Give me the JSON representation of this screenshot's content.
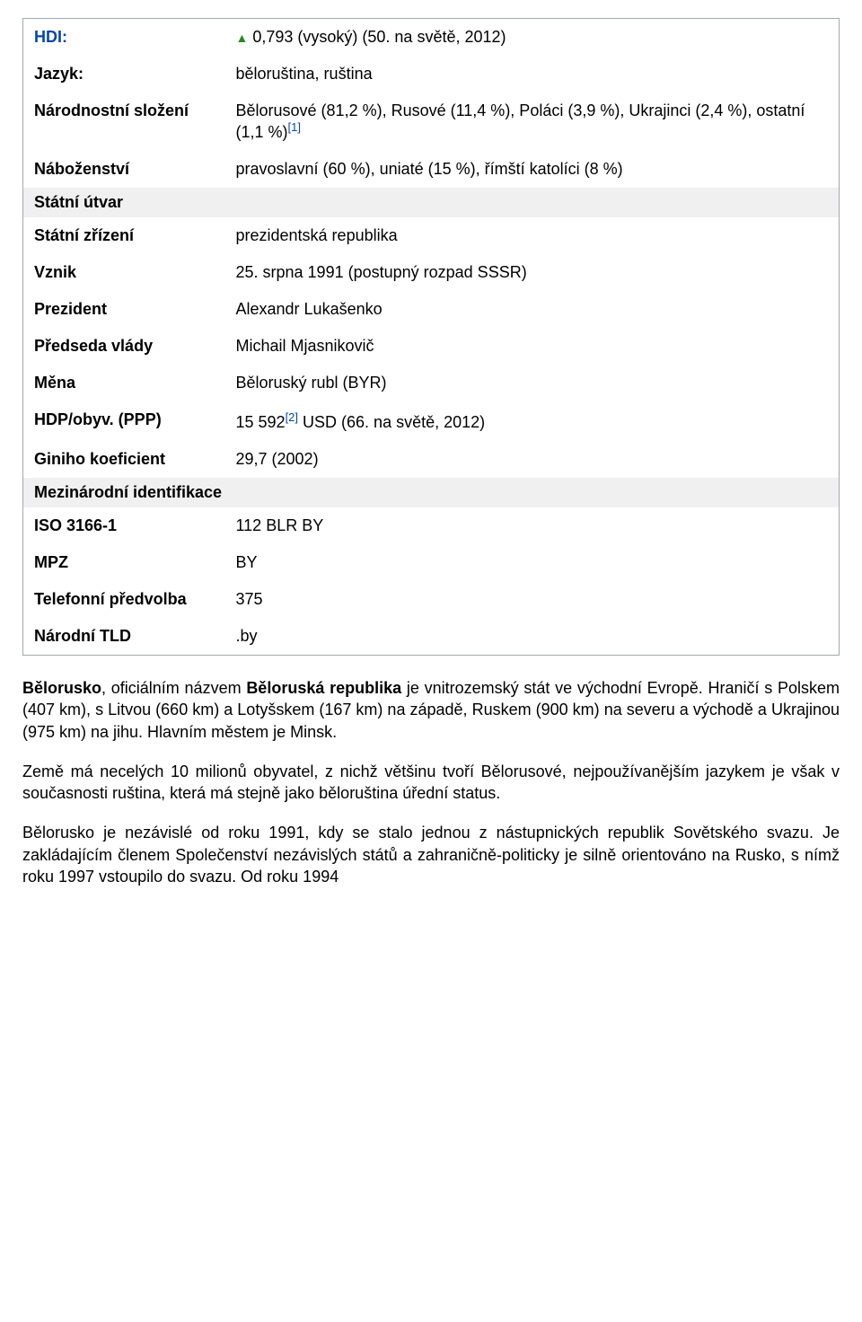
{
  "rows": {
    "hdi": {
      "label": "HDI:",
      "triangle": "▲",
      "value": " 0,793 (vysoký) (50. na světě, 2012)"
    },
    "language": {
      "label": "Jazyk:",
      "value": "běloruština, ruština"
    },
    "ethnic": {
      "label": "Národnostní složení",
      "text_before": "Bělorusové (81,2 %), Rusové (11,4 %), Poláci (3,9 %), Ukrajinci (2,4 %), ostatní (1,1 %)",
      "sup": "[1]"
    },
    "religion": {
      "label": "Náboženství",
      "value": "pravoslavní (60 %), uniaté (15 %), římští katolíci (8 %)"
    },
    "state_entity": {
      "label": "Státní útvar"
    },
    "gov_form": {
      "label": "Státní zřízení",
      "value": "prezidentská republika"
    },
    "founded": {
      "label": "Vznik",
      "value": "25. srpna 1991 (postupný rozpad SSSR)"
    },
    "president": {
      "label": "Prezident",
      "value": "Alexandr Lukašenko"
    },
    "pm": {
      "label": "Předseda vlády",
      "value": "Michail Mjasnikovič"
    },
    "currency": {
      "label": "Měna",
      "value": "Běloruský rubl (BYR)"
    },
    "gdp": {
      "label": "HDP/obyv. (PPP)",
      "text_before": "15 592",
      "sup": "[2]",
      "text_after": " USD (66. na světě, 2012)"
    },
    "gini": {
      "label": "Giniho koeficient",
      "value": "29,7 (2002)"
    },
    "intl_id": {
      "label": "Mezinárodní identifikace"
    },
    "iso": {
      "label": "ISO 3166-1",
      "value": "112 BLR BY"
    },
    "mpz": {
      "label": "MPZ",
      "value": "BY"
    },
    "phone": {
      "label": "Telefonní předvolba",
      "value": "375"
    },
    "tld": {
      "label": "Národní TLD",
      "value": ".by"
    }
  },
  "paragraphs": {
    "p1": {
      "b1": "Bělorusko",
      "t1": ", oficiálním názvem ",
      "b2": "Běloruská republika",
      "t2": " je vnitrozemský stát ve východní Evropě. Hraničí s Polskem (407 km), s Litvou (660 km) a Lotyšskem (167 km) na západě, Ruskem (900 km) na severu a východě a Ukrajinou (975 km) na jihu. Hlavním městem je Minsk."
    },
    "p2": "Země má necelých 10 milionů obyvatel, z nichž většinu tvoří Bělorusové, nejpoužívanějším jazykem je však v současnosti ruština, která má stejně jako běloruština úřední status.",
    "p3": "Bělorusko je nezávislé od roku 1991, kdy se stalo jednou z nástupnických republik Sovětského svazu. Je zakládajícím členem Společenství nezávislých států a zahraničně-politicky je silně orientováno na Rusko, s nímž roku 1997 vstoupilo do svazu. Od roku 1994"
  },
  "colors": {
    "border": "#a2a9b1",
    "section_bg": "#f0f0f0",
    "link": "#0645ad",
    "triangle": "#228b22",
    "text": "#000000",
    "background": "#ffffff"
  }
}
